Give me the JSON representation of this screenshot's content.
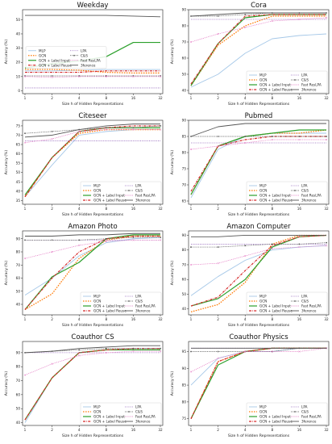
{
  "figure": {
    "legend_labels": {
      "mlp": "MLP",
      "gcn": "GCN",
      "gcn_li": "GCN + Label Input",
      "gcn_lr": "GCN + Label Reuse",
      "lpa": "LPA",
      "cs": "C&S",
      "frlpa": "Fast ResLPA",
      "ref": "3ference"
    },
    "colors": {
      "mlp": "#a6c8e8",
      "gcn": "#ff7f0e",
      "gcn_li": "#2ca02c",
      "gcn_lr": "#d62728",
      "lpa": "#9467bd",
      "cs": "#555555",
      "frlpa": "#e377c2",
      "ref": "#555555"
    }
  },
  "chart_data": [
    {
      "type": "line",
      "title": "Weekday",
      "xlabel": "Size h of Hidden Representations",
      "ylabel": "Accuracy (%)",
      "x": [
        1,
        2,
        4,
        8,
        16,
        32
      ],
      "xscale": "log2",
      "ylim": [
        -2,
        57
      ],
      "yticks": [
        0,
        10,
        20,
        30,
        40,
        50
      ],
      "legend": "center-left",
      "series": [
        {
          "key": "mlp",
          "values": [
            14,
            14,
            14.5,
            15,
            15,
            15
          ]
        },
        {
          "key": "gcn",
          "values": [
            15,
            15,
            14.5,
            13,
            12.5,
            12.5
          ]
        },
        {
          "key": "gcn_li",
          "values": [
            16,
            19,
            21,
            24,
            34,
            34
          ]
        },
        {
          "key": "gcn_lr",
          "values": [
            13,
            13,
            13,
            14,
            14,
            14
          ]
        },
        {
          "key": "lpa",
          "values": [
            2,
            2,
            2,
            2,
            2,
            2
          ]
        },
        {
          "key": "cs",
          "values": [
            10.5,
            10.5,
            10.5,
            10.5,
            10.5,
            10.5
          ]
        },
        {
          "key": "frlpa",
          "values": [
            10,
            9.5,
            10,
            10,
            10,
            10
          ]
        },
        {
          "key": "ref",
          "values": [
            53,
            53,
            53,
            53,
            52.5,
            52
          ]
        }
      ]
    },
    {
      "type": "line",
      "title": "Cora",
      "xlabel": "Size h of Hidden Representations",
      "ylabel": "Accuracy (%)",
      "x": [
        1,
        2,
        4,
        8,
        16,
        32
      ],
      "xscale": "log2",
      "ylim": [
        38,
        90
      ],
      "yticks": [
        40,
        50,
        60,
        70,
        80,
        90
      ],
      "legend": "bottom-right",
      "series": [
        {
          "key": "mlp",
          "values": [
            42,
            50,
            63,
            72,
            74,
            75
          ]
        },
        {
          "key": "gcn",
          "values": [
            43,
            68,
            80,
            86,
            86,
            86
          ]
        },
        {
          "key": "gcn_li",
          "values": [
            43,
            69,
            85,
            87,
            87,
            87
          ]
        },
        {
          "key": "gcn_lr",
          "values": [
            44,
            69,
            86,
            87,
            87,
            87
          ]
        },
        {
          "key": "lpa",
          "values": [
            84,
            84,
            84,
            84,
            84,
            84
          ]
        },
        {
          "key": "cs",
          "values": [
            86,
            86,
            87,
            88,
            88,
            88
          ]
        },
        {
          "key": "frlpa",
          "values": [
            70,
            75,
            79,
            83,
            84,
            85
          ]
        },
        {
          "key": "ref",
          "values": [
            86,
            87,
            88,
            88,
            88,
            88
          ]
        }
      ]
    },
    {
      "type": "line",
      "title": "Citeseer",
      "xlabel": "Size h of Hidden Representations",
      "ylabel": "Accuracy (%)",
      "x": [
        1,
        2,
        4,
        8,
        16,
        32
      ],
      "xscale": "log2",
      "ylim": [
        33,
        78
      ],
      "yticks": [
        35,
        40,
        45,
        50,
        55,
        60,
        65,
        70,
        75
      ],
      "legend": "bottom-right",
      "series": [
        {
          "key": "mlp",
          "values": [
            37,
            54,
            70,
            72,
            73,
            73
          ]
        },
        {
          "key": "gcn",
          "values": [
            37,
            58,
            71,
            73,
            73,
            73
          ]
        },
        {
          "key": "gcn_li",
          "values": [
            38,
            58,
            72,
            74,
            74,
            74
          ]
        },
        {
          "key": "gcn_lr",
          "values": [
            37,
            58,
            72,
            74,
            75,
            75
          ]
        },
        {
          "key": "lpa",
          "values": [
            67,
            67,
            67,
            67,
            67,
            67
          ]
        },
        {
          "key": "cs",
          "values": [
            71,
            72,
            73,
            74,
            74,
            75
          ]
        },
        {
          "key": "frlpa",
          "values": [
            66,
            68,
            72,
            73,
            73,
            73
          ]
        },
        {
          "key": "ref",
          "values": [
            69,
            70,
            73,
            75,
            76,
            76
          ]
        }
      ]
    },
    {
      "type": "line",
      "title": "Pubmed",
      "xlabel": "Size h of Hidden Representations",
      "ylabel": "Accuracy (%)",
      "x": [
        1,
        2,
        4,
        8,
        16,
        32
      ],
      "xscale": "log2",
      "ylim": [
        64,
        90
      ],
      "yticks": [
        65,
        70,
        75,
        80,
        85,
        90
      ],
      "legend": "bottom-right",
      "series": [
        {
          "key": "mlp",
          "values": [
            66,
            81,
            85,
            86,
            86,
            86
          ]
        },
        {
          "key": "gcn",
          "values": [
            67,
            82,
            85,
            86,
            86,
            87
          ]
        },
        {
          "key": "gcn_li",
          "values": [
            67,
            82,
            85,
            86,
            87,
            87
          ]
        },
        {
          "key": "gcn_lr",
          "values": [
            68,
            82,
            84,
            85,
            85,
            85
          ]
        },
        {
          "key": "lpa",
          "values": [
            83,
            83,
            83,
            83,
            83,
            83
          ]
        },
        {
          "key": "cs",
          "values": [
            85,
            85,
            85,
            85,
            85,
            85
          ]
        },
        {
          "key": "frlpa",
          "values": [
            81,
            82,
            83,
            84,
            84,
            84
          ]
        },
        {
          "key": "ref",
          "values": [
            85,
            88,
            89,
            89,
            89,
            89
          ]
        }
      ]
    },
    {
      "type": "line",
      "title": "Amazon Photo",
      "xlabel": "Size h of Hidden Representations",
      "ylabel": "Accuracy (%)",
      "x": [
        1,
        2,
        4,
        8,
        16,
        32
      ],
      "xscale": "log2",
      "ylim": [
        32,
        96
      ],
      "yticks": [
        40,
        50,
        60,
        70,
        80,
        90
      ],
      "legend": "bottom-right",
      "series": [
        {
          "key": "mlp",
          "values": [
            47,
            60,
            77,
            87,
            90,
            91
          ]
        },
        {
          "key": "gcn",
          "values": [
            36,
            48,
            75,
            89,
            92,
            92
          ]
        },
        {
          "key": "gcn_li",
          "values": [
            36,
            61,
            72,
            90,
            93,
            93
          ]
        },
        {
          "key": "gcn_lr",
          "values": [
            36,
            60,
            80,
            90,
            92,
            92
          ]
        },
        {
          "key": "lpa",
          "values": [
            89,
            89,
            89,
            89,
            89,
            89
          ]
        },
        {
          "key": "cs",
          "values": [
            89,
            89,
            89,
            90,
            91,
            91
          ]
        },
        {
          "key": "frlpa",
          "values": [
            75,
            80,
            85,
            88,
            89,
            89
          ]
        },
        {
          "key": "ref",
          "values": [
            92,
            92,
            93,
            93,
            94,
            94
          ]
        }
      ]
    },
    {
      "type": "line",
      "title": "Amazon Computer",
      "xlabel": "Size h of Hidden Representations",
      "ylabel": "Accuracy (%)",
      "x": [
        1,
        2,
        4,
        8,
        16,
        32
      ],
      "xscale": "log2",
      "ylim": [
        36,
        93
      ],
      "yticks": [
        40,
        50,
        60,
        70,
        80,
        90
      ],
      "legend": "bottom-right",
      "series": [
        {
          "key": "mlp",
          "values": [
            49,
            62,
            73,
            80,
            82,
            83
          ]
        },
        {
          "key": "gcn",
          "values": [
            38,
            43,
            58,
            84,
            90,
            90
          ]
        },
        {
          "key": "gcn_li",
          "values": [
            42,
            47,
            60,
            82,
            89,
            90
          ]
        },
        {
          "key": "gcn_lr",
          "values": [
            42,
            48,
            66,
            83,
            89,
            90
          ]
        },
        {
          "key": "lpa",
          "values": [
            84,
            84,
            84,
            84,
            84,
            84
          ]
        },
        {
          "key": "cs",
          "values": [
            82,
            82,
            83,
            84,
            84,
            85
          ]
        },
        {
          "key": "frlpa",
          "values": [
            70,
            71,
            76,
            81,
            82,
            83
          ]
        },
        {
          "key": "ref",
          "values": [
            89,
            89,
            90,
            90,
            90,
            90
          ]
        }
      ]
    },
    {
      "type": "line",
      "title": "Coauthor CS",
      "xlabel": "Size h of Hidden Representations",
      "ylabel": "Accuracy (%)",
      "x": [
        1,
        2,
        4,
        8,
        16,
        32
      ],
      "xscale": "log2",
      "ylim": [
        38,
        98
      ],
      "yticks": [
        40,
        50,
        60,
        70,
        80,
        90
      ],
      "legend": "bottom-right",
      "series": [
        {
          "key": "mlp",
          "values": [
            40,
            72,
            90,
            92,
            93,
            93
          ]
        },
        {
          "key": "gcn",
          "values": [
            42,
            72,
            90,
            92,
            92,
            92
          ]
        },
        {
          "key": "gcn_li",
          "values": [
            42,
            72,
            90,
            92,
            92,
            92
          ]
        },
        {
          "key": "gcn_lr",
          "values": [
            42,
            72,
            90,
            92,
            93,
            93
          ]
        },
        {
          "key": "lpa",
          "values": [
            90,
            90,
            90,
            90,
            90,
            90
          ]
        },
        {
          "key": "cs",
          "values": [
            90,
            91,
            92,
            93,
            93,
            93
          ]
        },
        {
          "key": "frlpa",
          "values": [
            74,
            82,
            88,
            90,
            91,
            91
          ]
        },
        {
          "key": "ref",
          "values": [
            90,
            91,
            93,
            94,
            95,
            95
          ]
        }
      ]
    },
    {
      "type": "line",
      "title": "Coauthor Physics",
      "xlabel": "Size h of Hidden Representations",
      "ylabel": "Accuracy (%)",
      "x": [
        1,
        2,
        4,
        8,
        16,
        32
      ],
      "xscale": "log2",
      "ylim": [
        73,
        98
      ],
      "yticks": [
        75,
        80,
        85,
        90,
        95
      ],
      "legend": "bottom-right",
      "series": [
        {
          "key": "mlp",
          "values": [
            85,
            93,
            95,
            95,
            96,
            96
          ]
        },
        {
          "key": "gcn",
          "values": [
            75,
            92,
            95,
            96,
            96,
            96
          ]
        },
        {
          "key": "gcn_li",
          "values": [
            75,
            91,
            95,
            96,
            96,
            96
          ]
        },
        {
          "key": "gcn_lr",
          "values": [
            75,
            92,
            95,
            96,
            96,
            96
          ]
        },
        {
          "key": "lpa",
          "values": [
            96,
            96,
            96,
            96,
            96,
            96
          ]
        },
        {
          "key": "cs",
          "values": [
            95,
            95,
            95,
            95,
            96,
            96
          ]
        },
        {
          "key": "frlpa",
          "values": [
            89,
            93,
            95,
            95,
            95,
            96
          ]
        },
        {
          "key": "ref",
          "values": [
            96,
            96,
            96,
            96,
            96,
            96
          ]
        }
      ]
    }
  ]
}
